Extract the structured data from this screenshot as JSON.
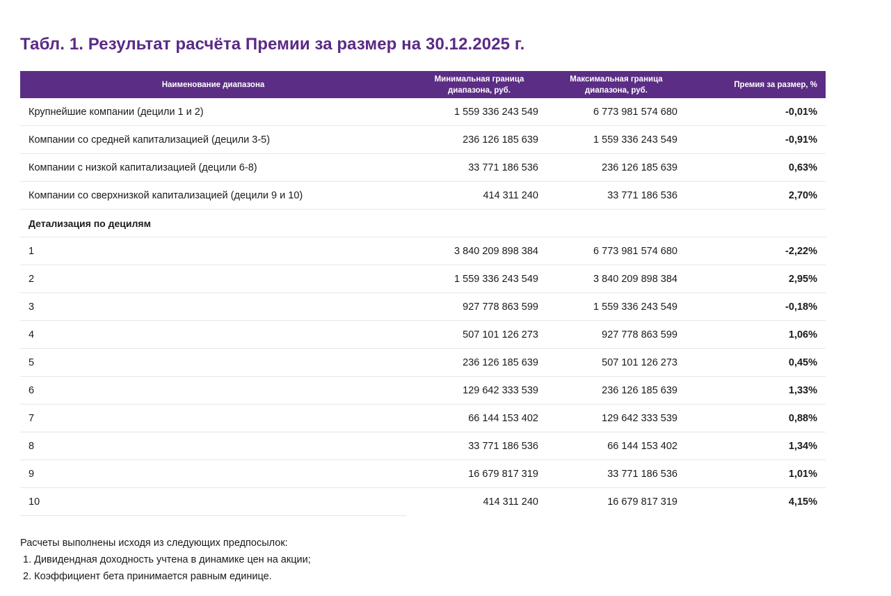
{
  "title": "Табл. 1. Результат расчёта Премии за размер на 30.12.2025 г.",
  "colors": {
    "title": "#5b2a86",
    "header_bg": "#5b2d84",
    "header_text": "#ffffff",
    "row_border": "#e6e6e6"
  },
  "table": {
    "headers": {
      "name": "Наименование диапазона",
      "min_line1": "Минимальная граница",
      "min_line2": "диапазона, руб.",
      "max_line1": "Максимальная граница",
      "max_line2": "диапазона, руб.",
      "premium": "Премия за размер, %"
    },
    "group_rows": [
      {
        "name": "Крупнейшие компании (децили 1 и 2)",
        "min": "1 559 336 243 549",
        "max": "6 773 981 574 680",
        "premium": "-0,01%"
      },
      {
        "name": "Компании со средней капитализацией (децили 3-5)",
        "min": "236 126 185 639",
        "max": "1 559 336 243 549",
        "premium": "-0,91%"
      },
      {
        "name": "Компании с низкой капитализацией (децили 6-8)",
        "min": "33 771 186 536",
        "max": "236 126 185 639",
        "premium": "0,63%"
      },
      {
        "name": "Компании со сверхнизкой капитализацией (децили 9 и 10)",
        "min": "414 311 240",
        "max": "33 771 186 536",
        "premium": "2,70%"
      }
    ],
    "section_label": "Детализация по децилям",
    "decile_rows": [
      {
        "name": "1",
        "min": "3 840 209 898 384",
        "max": "6 773 981 574 680",
        "premium": "-2,22%"
      },
      {
        "name": "2",
        "min": "1 559 336 243 549",
        "max": "3 840 209 898 384",
        "premium": "2,95%"
      },
      {
        "name": "3",
        "min": "927 778 863 599",
        "max": "1 559 336 243 549",
        "premium": "-0,18%"
      },
      {
        "name": "4",
        "min": "507 101 126 273",
        "max": "927 778 863 599",
        "premium": "1,06%"
      },
      {
        "name": "5",
        "min": "236 126 185 639",
        "max": "507 101 126 273",
        "premium": "0,45%"
      },
      {
        "name": "6",
        "min": "129 642 333 539",
        "max": "236 126 185 639",
        "premium": "1,33%"
      },
      {
        "name": "7",
        "min": "66 144 153 402",
        "max": "129 642 333 539",
        "premium": "0,88%"
      },
      {
        "name": "8",
        "min": "33 771 186 536",
        "max": "66 144 153 402",
        "premium": "1,34%"
      },
      {
        "name": "9",
        "min": "16 679 817 319",
        "max": "33 771 186 536",
        "premium": "1,01%"
      },
      {
        "name": "10",
        "min": "414 311 240",
        "max": "16 679 817 319",
        "premium": "4,15%"
      }
    ]
  },
  "notes": {
    "intro": "Расчеты выполнены исходя из следующих предпосылок:",
    "items": [
      "1. Дивидендная доходность учтена в динамике цен на акции;",
      "2. Коэффициент бета принимается равным единице."
    ]
  }
}
